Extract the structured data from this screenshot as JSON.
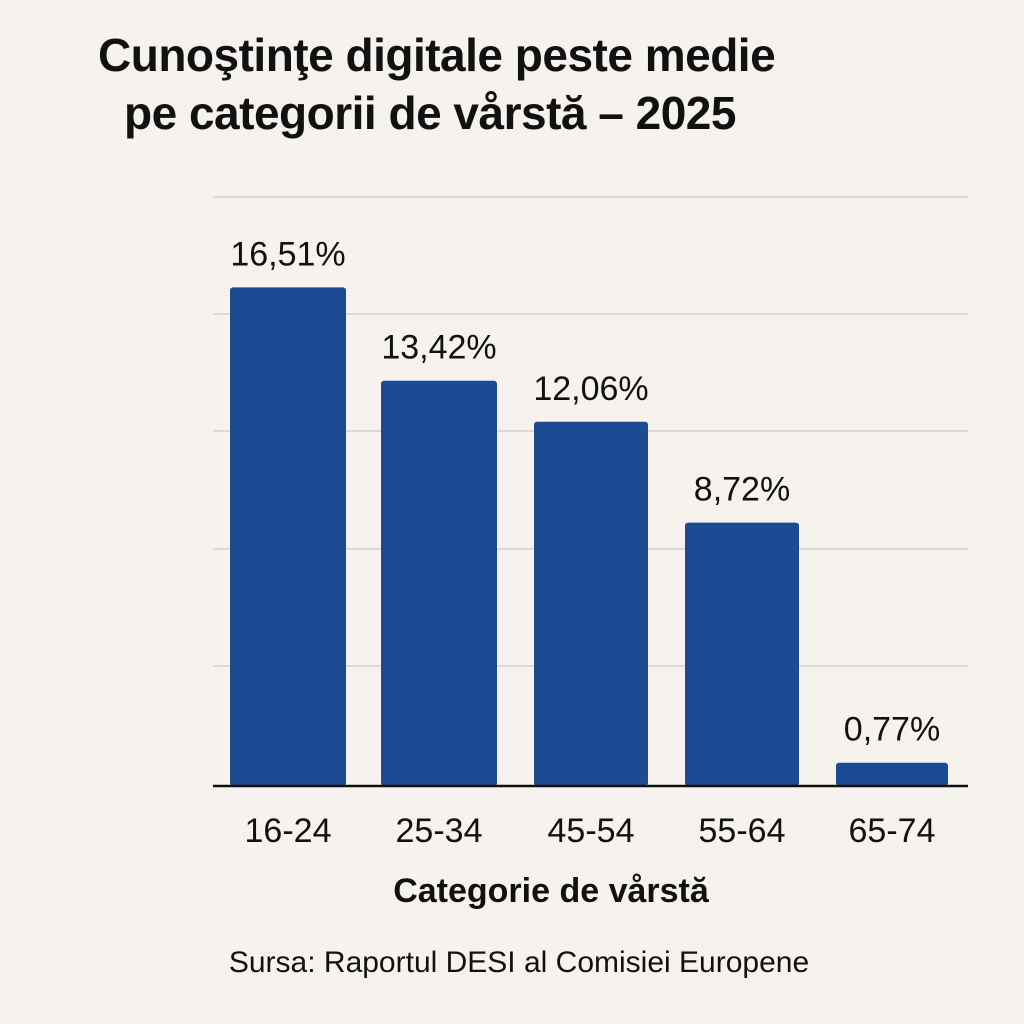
{
  "chart_data": {
    "type": "bar",
    "title": "Cunoştinţe digitale peste medie pe categorii de vårstă – 2025",
    "title_lines": [
      "Cunoştinţe digitale peste medie",
      "pe categorii de vårstă – 2025"
    ],
    "categories": [
      "16-24",
      "25-34",
      "45-54",
      "55-64",
      "65-74"
    ],
    "values": [
      16.51,
      13.42,
      12.06,
      8.72,
      0.77
    ],
    "data_labels": [
      "16,51%",
      "13,42%",
      "12,06%",
      "8,72%",
      "0,77%"
    ],
    "xlabel": "Categorie de vårstă",
    "ylabel": "",
    "ylim": [
      0,
      20
    ],
    "grid": true,
    "legend": "none",
    "bar_color": "#1c4a93",
    "source": "Sursa: Raportul DESI al Comisiei Europene"
  }
}
